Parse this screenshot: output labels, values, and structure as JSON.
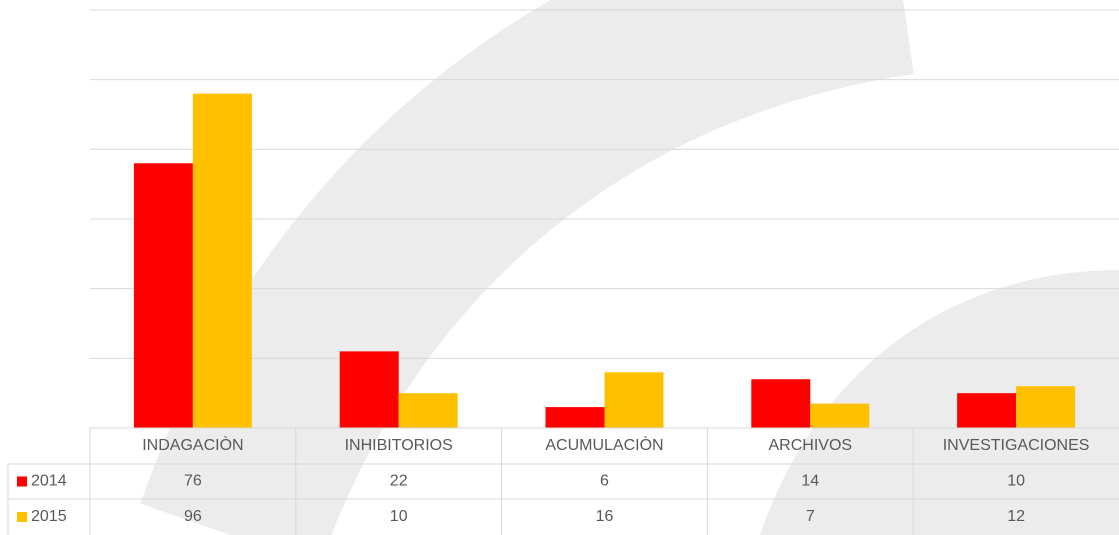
{
  "chart_data": {
    "type": "bar",
    "categories": [
      "INDAGACIÒN",
      "INHIBITORIOS",
      "ACUMULACIÒN",
      "ARCHIVOS",
      "INVESTIGACIONES"
    ],
    "series": [
      {
        "name": "2014",
        "color": "#ff0000",
        "values": [
          76,
          22,
          6,
          14,
          10
        ]
      },
      {
        "name": "2015",
        "color": "#ffc000",
        "values": [
          96,
          10,
          16,
          7,
          12
        ]
      }
    ],
    "ylim": [
      0,
      120
    ],
    "yticks": [
      0,
      20,
      40,
      60,
      80,
      100,
      120
    ],
    "grid": true,
    "data_table": true
  }
}
